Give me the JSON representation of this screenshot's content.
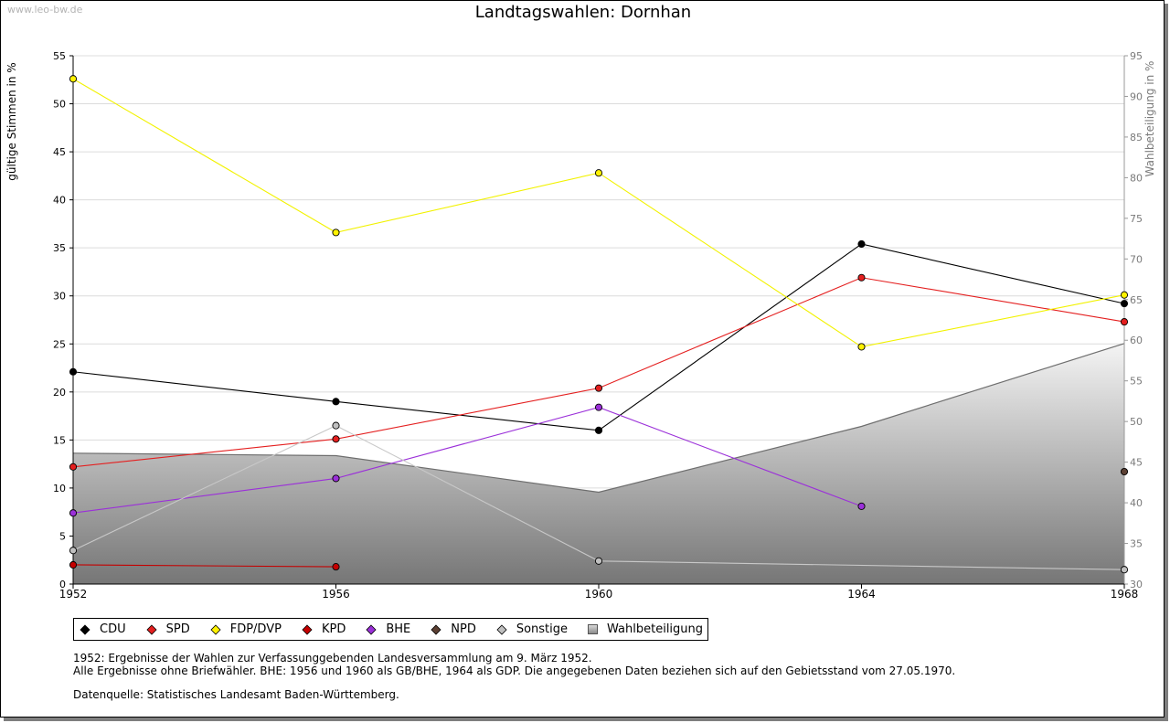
{
  "watermark": "www.leo-bw.de",
  "title": "Landtagswahlen: Dornhan",
  "chart_data": {
    "type": "line",
    "title": "Landtagswahlen: Dornhan",
    "ylabel": "gültige Stimmen in %",
    "y2label": "Wahlbeteiligung in %",
    "ylim": [
      0,
      55
    ],
    "y2lim": [
      30,
      95
    ],
    "yticks": [
      0,
      5,
      10,
      15,
      20,
      25,
      30,
      35,
      40,
      45,
      50,
      55
    ],
    "y2ticks": [
      30,
      35,
      40,
      45,
      50,
      55,
      60,
      65,
      70,
      75,
      80,
      85,
      90,
      95
    ],
    "xlim": [
      1952,
      1968
    ],
    "x": [
      1952,
      1956,
      1960,
      1964,
      1968
    ],
    "grid": true,
    "series": [
      {
        "name": "CDU",
        "color": "#000000",
        "line": "#000000",
        "values": [
          22.1,
          19.0,
          16.0,
          35.4,
          29.2
        ]
      },
      {
        "name": "SPD",
        "color": "#e41f1f",
        "line": "#e41f1f",
        "values": [
          12.2,
          15.1,
          20.4,
          31.9,
          27.3
        ]
      },
      {
        "name": "FDP/DVP",
        "color": "#fff200",
        "line": "#f2f200",
        "values": [
          52.6,
          36.6,
          42.8,
          24.7,
          30.1
        ]
      },
      {
        "name": "KPD",
        "color": "#c40000",
        "line": "#c40000",
        "values": [
          2.0,
          1.8,
          null,
          null,
          null
        ]
      },
      {
        "name": "BHE",
        "color": "#9b30d9",
        "line": "#9b30d9",
        "values": [
          7.4,
          11.0,
          18.4,
          8.1,
          null
        ]
      },
      {
        "name": "NPD",
        "color": "#5c4033",
        "line": "#5c4033",
        "values": [
          null,
          null,
          null,
          null,
          11.7
        ]
      },
      {
        "name": "Sonstige",
        "color": "#c0c0c0",
        "line": "#c8c8c8",
        "values": [
          3.5,
          16.5,
          2.4,
          null,
          1.5
        ]
      }
    ],
    "area": {
      "name": "Wahlbeteiligung",
      "axis": "right",
      "values": [
        46.1,
        45.8,
        41.3,
        49.4,
        59.6
      ]
    }
  },
  "notes": {
    "line1": "1952: Ergebnisse der Wahlen zur Verfassunggebenden Landesversammlung am 9. März 1952.",
    "line2": "Alle Ergebnisse ohne Briefwähler. BHE: 1956 und 1960 als GB/BHE, 1964 als GDP. Die angegebenen Daten beziehen sich auf den Gebietsstand vom 27.05.1970.",
    "source": "Datenquelle: Statistisches Landesamt Baden-Württemberg."
  }
}
